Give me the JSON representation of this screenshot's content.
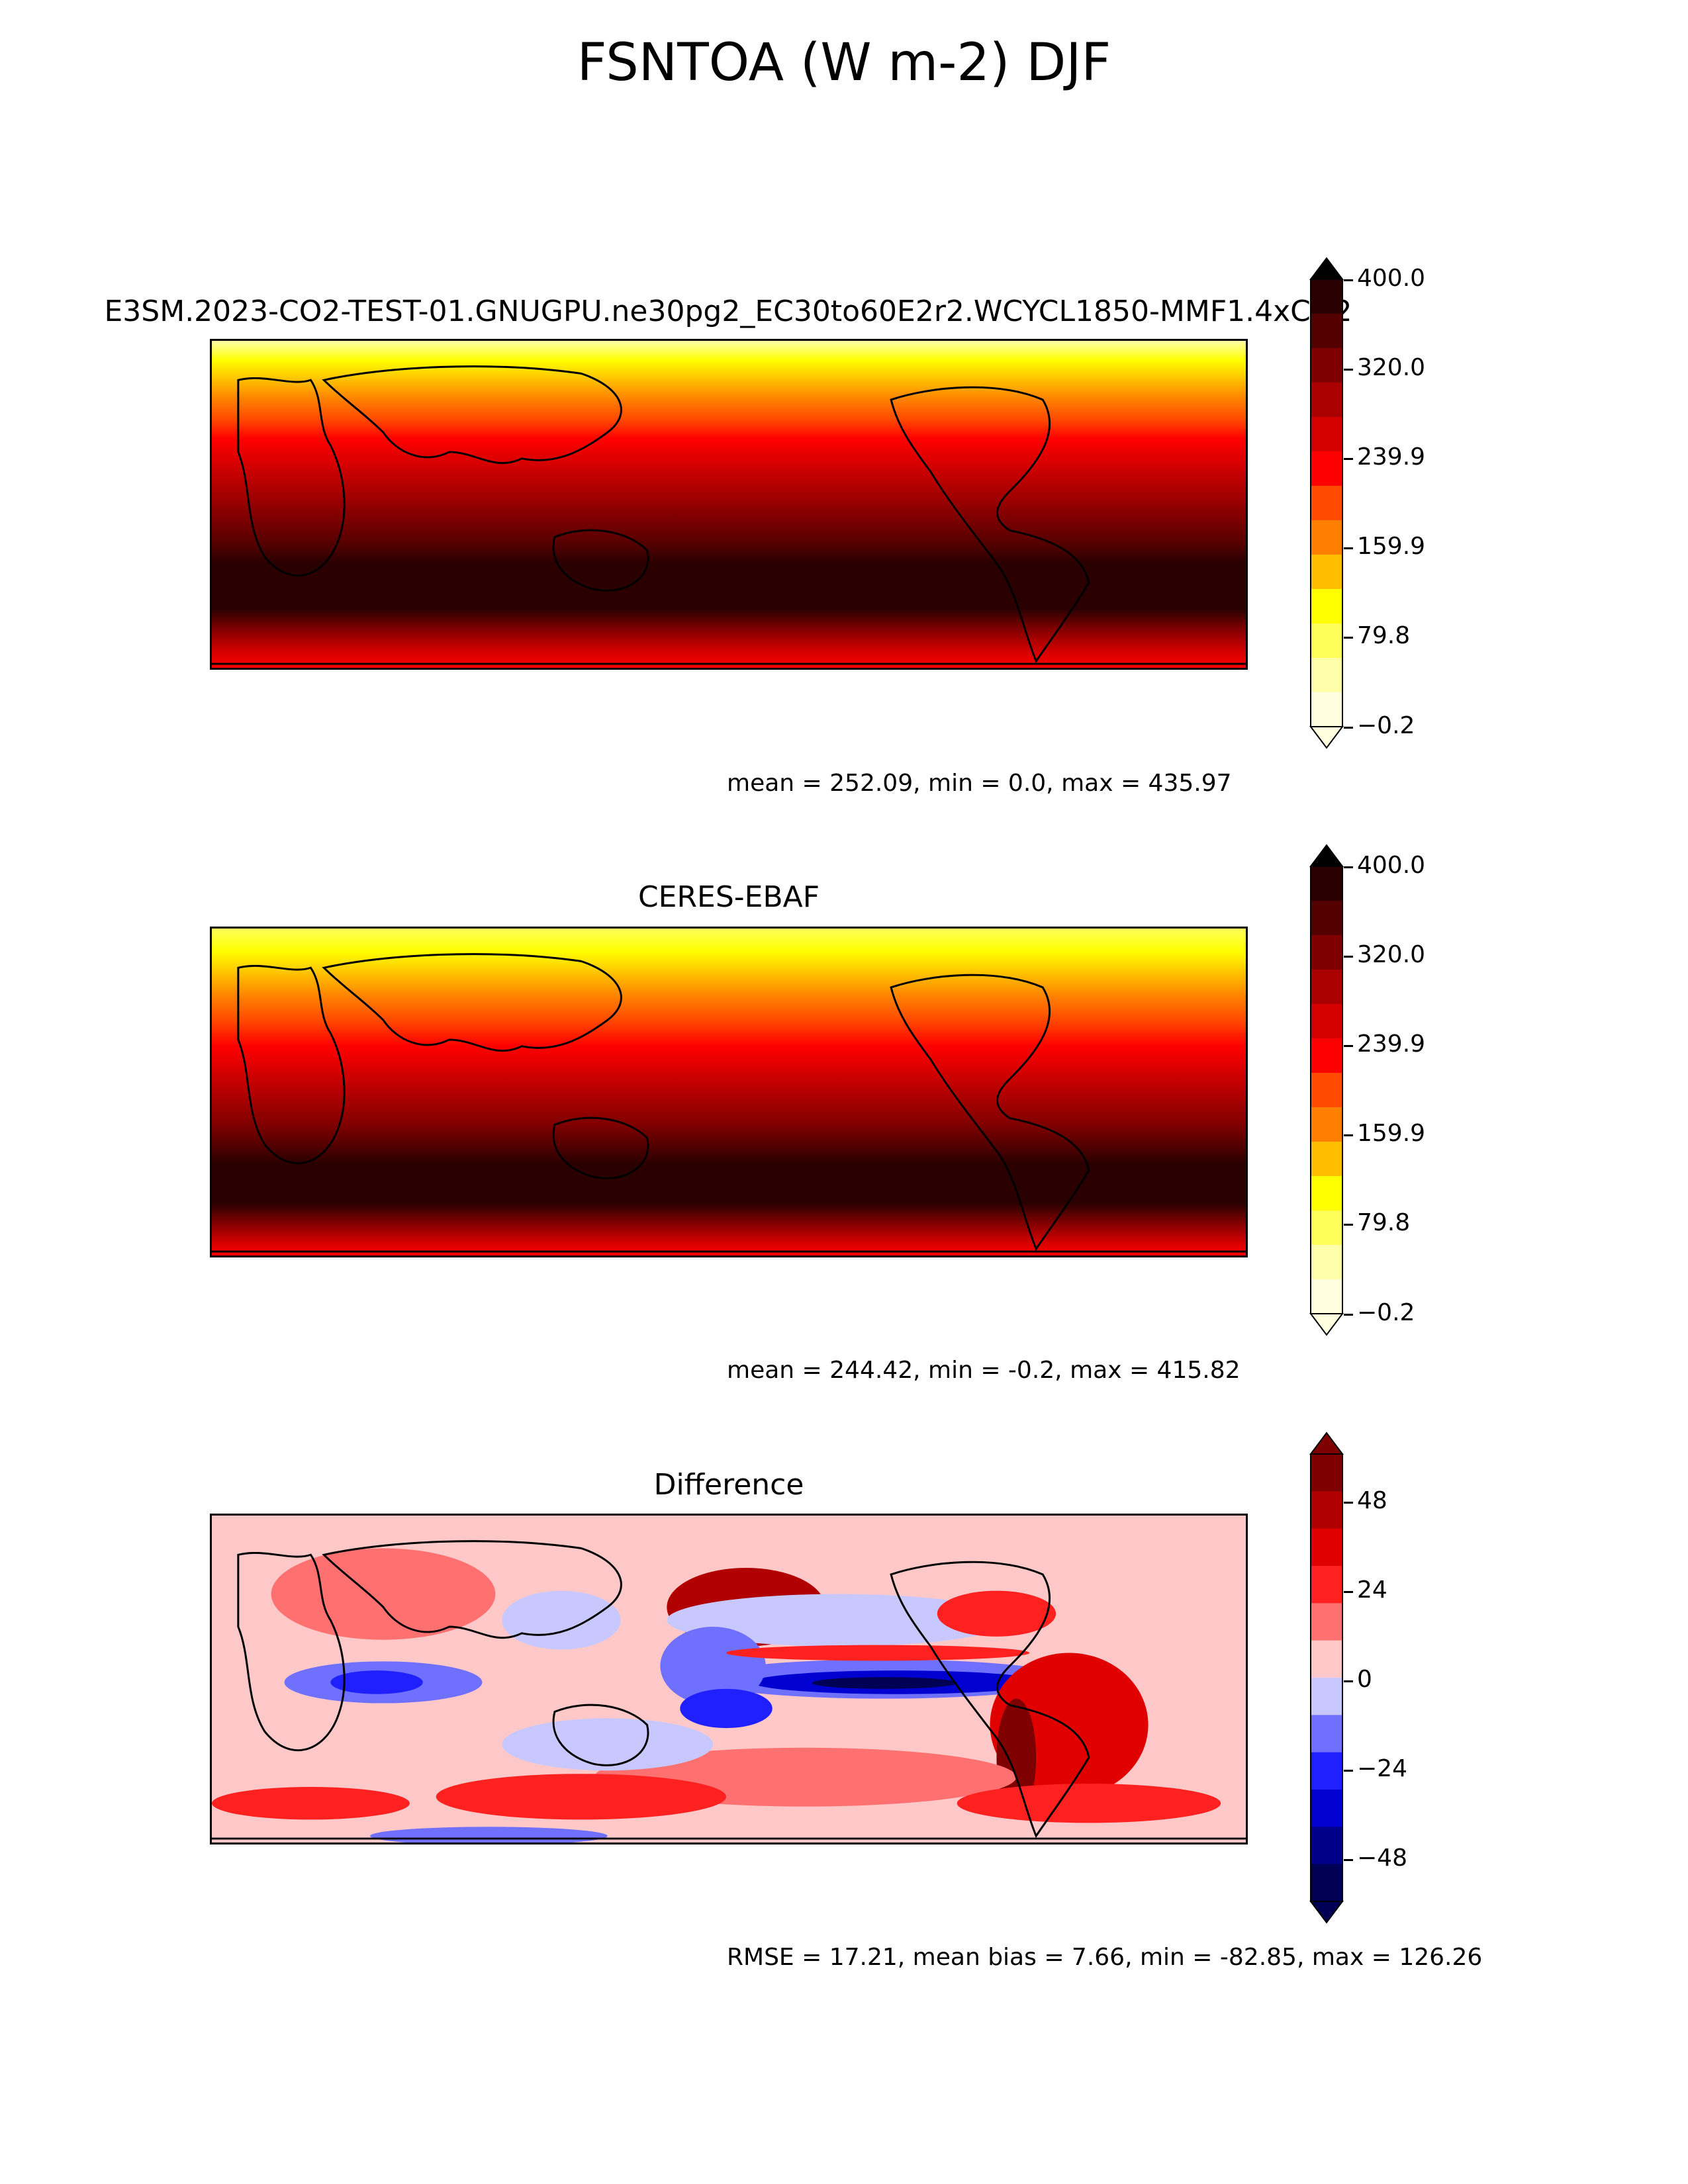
{
  "figure": {
    "title": "FSNTOA (W m-2) DJF"
  },
  "panels": [
    {
      "title": "E3SM.2023-CO2-TEST-01.GNUGPU.ne30pg2_EC30to60E2r2.WCYCL1850-MMF1.4xCO2",
      "stats": "mean = 252.09, min = 0.0, max = 435.97",
      "colorbar": {
        "ticks": [
          "400.0",
          "320.0",
          "239.9",
          "159.9",
          "79.8",
          "−0.2"
        ],
        "colors": [
          "#2a0000",
          "#550000",
          "#7f0000",
          "#aa0000",
          "#d40000",
          "#ff0000",
          "#ff4a00",
          "#ff8000",
          "#ffbf00",
          "#ffff00",
          "#ffff5a",
          "#ffffaa",
          "#ffffe0"
        ]
      }
    },
    {
      "title": "CERES-EBAF",
      "stats": "mean = 244.42, min = -0.2, max = 415.82",
      "colorbar": {
        "ticks": [
          "400.0",
          "320.0",
          "239.9",
          "159.9",
          "79.8",
          "−0.2"
        ],
        "colors": [
          "#2a0000",
          "#550000",
          "#7f0000",
          "#aa0000",
          "#d40000",
          "#ff0000",
          "#ff4a00",
          "#ff8000",
          "#ffbf00",
          "#ffff00",
          "#ffff5a",
          "#ffffaa",
          "#ffffe0"
        ]
      }
    },
    {
      "title": "Difference",
      "stats": "RMSE = 17.21, mean bias = 7.66, min = -82.85, max = 126.26",
      "colorbar": {
        "ticks": [
          "48",
          "24",
          "0",
          "−24",
          "−48"
        ],
        "colors": [
          "#7f0000",
          "#b00000",
          "#e00000",
          "#ff2020",
          "#ff7070",
          "#ffc8c8",
          "#c8c8ff",
          "#7070ff",
          "#2020ff",
          "#0000d0",
          "#00008a",
          "#000055"
        ]
      }
    }
  ]
}
